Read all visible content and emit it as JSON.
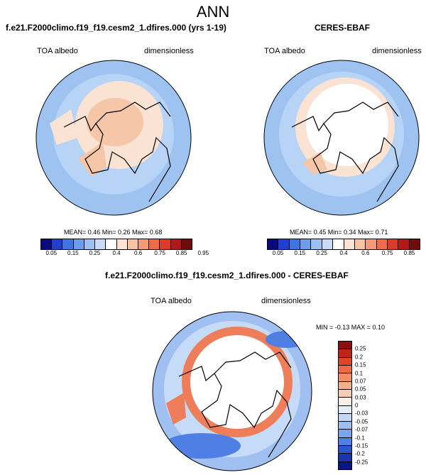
{
  "main_title": "ANN",
  "panel_left": {
    "title": "f.e21.F2000climo.f19_f19.cesm2_1.dfires.000 (yrs 1-19)",
    "left_label": "TOA albedo",
    "right_label": "dimensionless",
    "stats": "MEAN=  0.46  Min=  0.26  Max=  0.68"
  },
  "panel_right": {
    "title": "CERES-EBAF",
    "left_label": "TOA albedo",
    "right_label": "dimensionless",
    "stats": "MEAN=  0.45  Min=  0.34  Max=  0.71"
  },
  "panel_diff": {
    "title": "f.e21.F2000climo.f19_f19.cesm2_1.dfires.000 - CERES-EBAF",
    "left_label": "TOA albedo",
    "right_label": "dimensionless",
    "stats": "MIN =  -0.13 MAX =   0.10"
  },
  "abs_colorbar": {
    "labels": [
      "0.05",
      "0.15",
      "0.25",
      "0.4",
      "0.6",
      "0.75",
      "0.85",
      "0.95"
    ],
    "colors": [
      "#0a0a7e",
      "#1f3fd1",
      "#3f74e3",
      "#6b9ded",
      "#9dbff3",
      "#c9dbf7",
      "#ffffff",
      "#fbe2d2",
      "#f8c3a4",
      "#f49a76",
      "#ee6a4a",
      "#dc3a2b",
      "#b31818",
      "#6e0b0b"
    ]
  },
  "diff_colorbar": {
    "labels": [
      "0.25",
      "0.2",
      "0.15",
      "0.1",
      "0.07",
      "0.05",
      "0.03",
      "0",
      "-0.03",
      "-0.05",
      "-0.07",
      "-0.1",
      "-0.15",
      "-0.2",
      "-0.25"
    ],
    "colors": [
      "#8a0e0e",
      "#c1231a",
      "#e04426",
      "#ef6a43",
      "#f38d64",
      "#f6ad8b",
      "#f8cdb3",
      "#fdeee4",
      "#e4eefb",
      "#c2d7f6",
      "#9dbef1",
      "#7aa3ec",
      "#5180e3",
      "#2d55d2",
      "#1b33b2",
      "#0b1487"
    ]
  },
  "map_colors": {
    "ocean_low": "#9ec3f1",
    "ocean_mid": "#b7d3f5",
    "ice_warm": "#f5c6a8",
    "ice_light": "#fbe3d3",
    "neutral": "#ffffff",
    "diff_blue": "#4f7fe2",
    "diff_red": "#ee7d5a",
    "coast": "#000000"
  }
}
